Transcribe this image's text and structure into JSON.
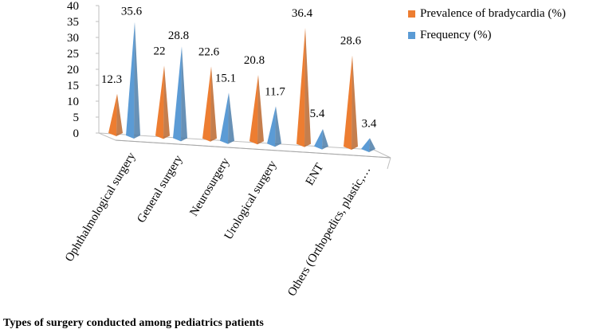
{
  "chart_data": {
    "type": "bar",
    "style": "3d-cone",
    "title": "",
    "xlabel": "Types of surgery conducted among pediatrics patients",
    "ylabel": "",
    "ylim": [
      0,
      40
    ],
    "yticks": [
      0,
      5,
      10,
      15,
      20,
      25,
      30,
      35,
      40
    ],
    "categories": [
      "Ophthalmological surgery",
      "General surgery",
      "Neurosurgery",
      "Urological surgery",
      "ENT",
      "Others (Orthopedics, plastic,…"
    ],
    "series": [
      {
        "name": "Prevalence of bradycardia (%)",
        "color": "#ED7D31",
        "values": [
          12.3,
          22,
          22.6,
          20.8,
          36.4,
          28.6
        ]
      },
      {
        "name": "Frequency (%)",
        "color": "#5B9BD5",
        "values": [
          35.6,
          28.8,
          15.1,
          11.7,
          5.4,
          3.4
        ]
      }
    ],
    "legend_position": "top-right",
    "grid": false
  }
}
